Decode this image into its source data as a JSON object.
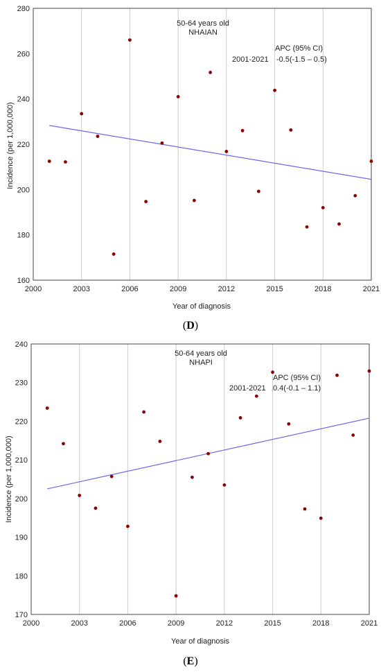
{
  "chart_data": [
    {
      "type": "scatter",
      "panel_label": "D",
      "annotation_lines": [
        "50-64 years old",
        "NHAIAN"
      ],
      "period": "2001-2021",
      "apc_label": "APC (95% CI)",
      "apc_value": "-0.5(-1.5 – 0.5)",
      "xlabel": "Year of diagnosis",
      "ylabel": "Incidence (per 1,000,000)",
      "xlim": [
        2000,
        2021
      ],
      "ylim": [
        160,
        280
      ],
      "xticks": [
        2000,
        2003,
        2006,
        2009,
        2012,
        2015,
        2018,
        2021
      ],
      "yticks": [
        160,
        180,
        200,
        220,
        240,
        260,
        280
      ],
      "grid": "vertical",
      "point_color": "#8b0000",
      "trend_color": "#6666ee",
      "points": [
        {
          "x": 2001,
          "y": 212.5
        },
        {
          "x": 2002,
          "y": 212.2
        },
        {
          "x": 2003,
          "y": 233.5
        },
        {
          "x": 2004,
          "y": 223.5
        },
        {
          "x": 2005,
          "y": 171.5
        },
        {
          "x": 2006,
          "y": 266.0
        },
        {
          "x": 2007,
          "y": 194.7
        },
        {
          "x": 2008,
          "y": 220.5
        },
        {
          "x": 2009,
          "y": 241.0
        },
        {
          "x": 2010,
          "y": 195.2
        },
        {
          "x": 2011,
          "y": 251.7
        },
        {
          "x": 2012,
          "y": 216.8
        },
        {
          "x": 2013,
          "y": 226.0
        },
        {
          "x": 2014,
          "y": 199.2
        },
        {
          "x": 2015,
          "y": 243.8
        },
        {
          "x": 2016,
          "y": 226.3
        },
        {
          "x": 2017,
          "y": 183.5
        },
        {
          "x": 2018,
          "y": 192.0
        },
        {
          "x": 2019,
          "y": 184.8
        },
        {
          "x": 2020,
          "y": 197.3
        },
        {
          "x": 2021,
          "y": 212.5
        }
      ],
      "trend": [
        {
          "x": 2001,
          "y": 228.3
        },
        {
          "x": 2021,
          "y": 204.5
        }
      ]
    },
    {
      "type": "scatter",
      "panel_label": "E",
      "annotation_lines": [
        "50-64 years old",
        "NHAPI"
      ],
      "period": "2001-2021",
      "apc_label": "APC (95% CI)",
      "apc_value": "0.4(-0.1 – 1.1)",
      "xlabel": "Year of diagnosis",
      "ylabel": "Incidence (per 1,000,000)",
      "xlim": [
        2000,
        2021
      ],
      "ylim": [
        170,
        240
      ],
      "xticks": [
        2000,
        2003,
        2006,
        2009,
        2012,
        2015,
        2018,
        2021
      ],
      "yticks": [
        170,
        180,
        190,
        200,
        210,
        220,
        230,
        240
      ],
      "grid": "vertical",
      "point_color": "#8b0000",
      "trend_color": "#6666ee",
      "points": [
        {
          "x": 2001,
          "y": 223.4
        },
        {
          "x": 2002,
          "y": 214.2
        },
        {
          "x": 2003,
          "y": 200.8
        },
        {
          "x": 2004,
          "y": 197.5
        },
        {
          "x": 2005,
          "y": 205.7
        },
        {
          "x": 2006,
          "y": 192.8
        },
        {
          "x": 2007,
          "y": 222.4
        },
        {
          "x": 2008,
          "y": 214.8
        },
        {
          "x": 2009,
          "y": 174.8
        },
        {
          "x": 2010,
          "y": 205.5
        },
        {
          "x": 2011,
          "y": 211.6
        },
        {
          "x": 2012,
          "y": 203.5
        },
        {
          "x": 2013,
          "y": 220.9
        },
        {
          "x": 2014,
          "y": 226.5
        },
        {
          "x": 2015,
          "y": 232.7
        },
        {
          "x": 2016,
          "y": 219.3
        },
        {
          "x": 2017,
          "y": 197.3
        },
        {
          "x": 2018,
          "y": 194.9
        },
        {
          "x": 2019,
          "y": 231.9
        },
        {
          "x": 2020,
          "y": 216.4
        },
        {
          "x": 2021,
          "y": 233.0
        }
      ],
      "trend": [
        {
          "x": 2001,
          "y": 202.5
        },
        {
          "x": 2021,
          "y": 220.8
        }
      ]
    }
  ]
}
